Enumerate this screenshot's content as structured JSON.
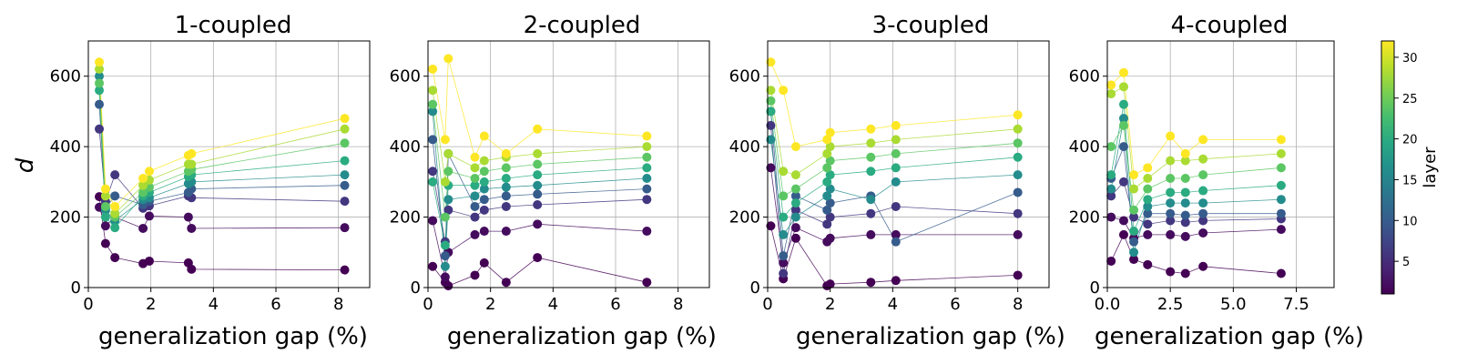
{
  "chart_data": [
    {
      "type": "scatter",
      "title": "1-coupled",
      "xlabel": "generalization gap (%)",
      "ylabel": "d",
      "xlim": [
        0,
        9
      ],
      "ylim": [
        0,
        700
      ],
      "x_ticks": [
        "0",
        "2",
        "4",
        "6",
        "8"
      ],
      "y_ticks": [
        "0",
        "200",
        "400",
        "600"
      ],
      "grid": true,
      "x": [
        0.35,
        0.55,
        0.85,
        1.75,
        1.95,
        3.2,
        3.3,
        8.2
      ],
      "series": [
        {
          "layer": 1,
          "values": [
            258,
            125,
            85,
            68,
            75,
            70,
            52,
            50
          ]
        },
        {
          "layer": 2,
          "values": [
            228,
            175,
            200,
            168,
            203,
            200,
            168,
            170
          ]
        },
        {
          "layer": 6,
          "values": [
            450,
            245,
            320,
            225,
            232,
            260,
            255,
            245
          ]
        },
        {
          "layer": 10,
          "values": [
            520,
            225,
            260,
            235,
            245,
            270,
            280,
            290
          ]
        },
        {
          "layer": 16,
          "values": [
            600,
            220,
            190,
            250,
            255,
            295,
            300,
            320
          ]
        },
        {
          "layer": 20,
          "values": [
            560,
            200,
            170,
            260,
            270,
            315,
            320,
            360
          ]
        },
        {
          "layer": 24,
          "values": [
            580,
            230,
            200,
            270,
            285,
            330,
            335,
            410
          ]
        },
        {
          "layer": 28,
          "values": [
            620,
            260,
            210,
            290,
            305,
            350,
            350,
            450
          ]
        },
        {
          "layer": 32,
          "values": [
            640,
            280,
            230,
            310,
            330,
            375,
            380,
            480
          ]
        }
      ]
    },
    {
      "type": "scatter",
      "title": "2-coupled",
      "xlabel": "generalization gap (%)",
      "ylabel": "",
      "xlim": [
        0,
        9
      ],
      "ylim": [
        0,
        700
      ],
      "x_ticks": [
        "0",
        "2",
        "4",
        "6",
        "8"
      ],
      "y_ticks": [
        "0",
        "200",
        "400",
        "600"
      ],
      "grid": true,
      "x": [
        0.15,
        0.55,
        0.65,
        1.5,
        1.8,
        2.5,
        3.5,
        7.0
      ],
      "series": [
        {
          "layer": 1,
          "values": [
            60,
            15,
            5,
            35,
            70,
            15,
            85,
            15
          ]
        },
        {
          "layer": 2,
          "values": [
            190,
            30,
            100,
            150,
            160,
            160,
            180,
            160
          ]
        },
        {
          "layer": 6,
          "values": [
            330,
            130,
            220,
            200,
            220,
            230,
            235,
            250
          ]
        },
        {
          "layer": 10,
          "values": [
            420,
            90,
            380,
            230,
            250,
            260,
            265,
            280
          ]
        },
        {
          "layer": 16,
          "values": [
            500,
            60,
            250,
            260,
            280,
            285,
            290,
            310
          ]
        },
        {
          "layer": 20,
          "values": [
            300,
            120,
            290,
            290,
            300,
            310,
            320,
            340
          ]
        },
        {
          "layer": 24,
          "values": [
            520,
            200,
            330,
            310,
            330,
            340,
            350,
            370
          ]
        },
        {
          "layer": 28,
          "values": [
            560,
            300,
            380,
            340,
            360,
            370,
            380,
            400
          ]
        },
        {
          "layer": 32,
          "values": [
            620,
            420,
            650,
            370,
            430,
            380,
            450,
            430
          ]
        }
      ]
    },
    {
      "type": "scatter",
      "title": "3-coupled",
      "xlabel": "generalization gap (%)",
      "ylabel": "",
      "xlim": [
        0,
        9
      ],
      "ylim": [
        0,
        700
      ],
      "x_ticks": [
        "0",
        "2",
        "4",
        "6",
        "8"
      ],
      "y_ticks": [
        "0",
        "200",
        "400",
        "600"
      ],
      "grid": true,
      "x": [
        0.1,
        0.5,
        0.9,
        1.9,
        2.0,
        3.3,
        4.1,
        8.0
      ],
      "series": [
        {
          "layer": 1,
          "values": [
            175,
            25,
            140,
            5,
            10,
            15,
            20,
            35
          ]
        },
        {
          "layer": 2,
          "values": [
            340,
            70,
            170,
            130,
            140,
            150,
            150,
            150
          ]
        },
        {
          "layer": 6,
          "values": [
            460,
            40,
            220,
            180,
            200,
            210,
            230,
            210
          ]
        },
        {
          "layer": 10,
          "values": [
            500,
            90,
            260,
            220,
            240,
            260,
            130,
            270
          ]
        },
        {
          "layer": 16,
          "values": [
            420,
            150,
            200,
            260,
            280,
            250,
            300,
            320
          ]
        },
        {
          "layer": 20,
          "values": [
            500,
            200,
            240,
            300,
            320,
            330,
            340,
            370
          ]
        },
        {
          "layer": 24,
          "values": [
            530,
            260,
            280,
            340,
            360,
            370,
            380,
            410
          ]
        },
        {
          "layer": 28,
          "values": [
            560,
            330,
            320,
            380,
            400,
            410,
            420,
            450
          ]
        },
        {
          "layer": 32,
          "values": [
            640,
            560,
            400,
            420,
            440,
            450,
            460,
            490
          ]
        }
      ]
    },
    {
      "type": "scatter",
      "title": "4-coupled",
      "xlabel": "generalization gap (%)",
      "ylabel": "",
      "xlim": [
        0,
        9
      ],
      "ylim": [
        0,
        700
      ],
      "x_ticks": [
        "0.0",
        "2.5",
        "5.0",
        "7.5"
      ],
      "x_tick_values": [
        0,
        2.5,
        5.0,
        7.5
      ],
      "y_ticks": [
        "0",
        "200",
        "400",
        "600"
      ],
      "grid": true,
      "x": [
        0.15,
        0.65,
        1.05,
        1.6,
        2.5,
        3.1,
        3.8,
        6.9
      ],
      "series": [
        {
          "layer": 1,
          "values": [
            75,
            150,
            80,
            65,
            45,
            40,
            60,
            40
          ]
        },
        {
          "layer": 2,
          "values": [
            200,
            190,
            140,
            150,
            150,
            145,
            155,
            165
          ]
        },
        {
          "layer": 6,
          "values": [
            260,
            300,
            200,
            180,
            190,
            185,
            190,
            195
          ]
        },
        {
          "layer": 10,
          "values": [
            310,
            400,
            130,
            210,
            210,
            205,
            210,
            210
          ]
        },
        {
          "layer": 16,
          "values": [
            280,
            480,
            100,
            230,
            240,
            240,
            240,
            250
          ]
        },
        {
          "layer": 20,
          "values": [
            320,
            520,
            160,
            250,
            270,
            270,
            275,
            290
          ]
        },
        {
          "layer": 24,
          "values": [
            400,
            460,
            220,
            280,
            310,
            310,
            320,
            340
          ]
        },
        {
          "layer": 28,
          "values": [
            550,
            570,
            280,
            310,
            360,
            360,
            365,
            380
          ]
        },
        {
          "layer": 32,
          "values": [
            575,
            610,
            320,
            340,
            430,
            380,
            420,
            420
          ]
        }
      ]
    }
  ],
  "colorbar": {
    "label": "layer",
    "min": 1,
    "max": 32,
    "ticks": [
      "5",
      "10",
      "15",
      "20",
      "25",
      "30"
    ],
    "tick_values": [
      5,
      10,
      15,
      20,
      25,
      30
    ],
    "colormap": "viridis"
  }
}
